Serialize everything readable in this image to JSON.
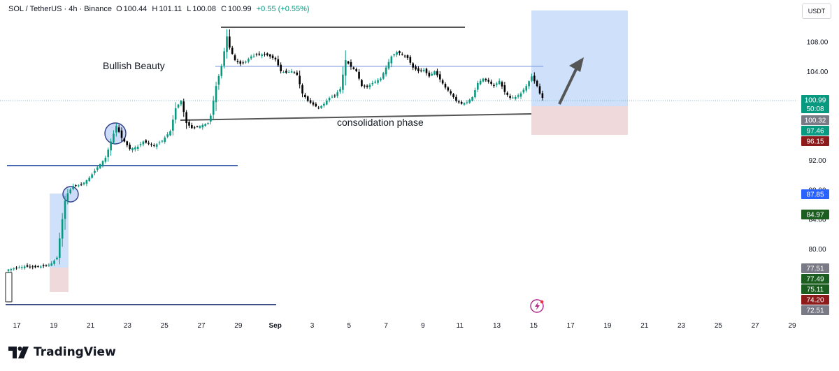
{
  "header": {
    "symbol": "SOL / TetherUS · 4h · Binance",
    "o_label": "O",
    "o_value": "100.44",
    "h_label": "H",
    "h_value": "101.11",
    "l_label": "L",
    "l_value": "100.08",
    "c_label": "C",
    "c_value": "100.99",
    "change": "+0.55 (+0.55%)"
  },
  "currency_button": "USDT",
  "brand": {
    "name": "TradingView",
    "logo_icon": "tradingview-logo-icon"
  },
  "colors": {
    "up": "#089981",
    "down": "#000000",
    "axis_text": "#131722",
    "line_blue": "#2962ff",
    "target_zone": "#cfe0fb",
    "stop_zone": "#f0d9db",
    "annotation_gray": "#555555"
  },
  "chart_data": {
    "type": "candlestick",
    "y_axis": {
      "ylim": [
        71.5,
        112.5
      ],
      "ticks": [
        80,
        84,
        88,
        92,
        104,
        108
      ]
    },
    "x_axis": {
      "ticks": [
        "17",
        "19",
        "21",
        "23",
        "25",
        "27",
        "29",
        "Sep",
        "3",
        "5",
        "7",
        "9",
        "11",
        "13",
        "15",
        "17",
        "19",
        "21",
        "23",
        "25",
        "27",
        "29"
      ]
    },
    "annotations": [
      {
        "text": "Bullish Beauty"
      },
      {
        "text": "consolidation phase"
      }
    ],
    "price_labels": [
      {
        "value": "100.99",
        "sub": "50:08",
        "color": "#089981"
      },
      {
        "value": "100.32",
        "color": "#787b86"
      },
      {
        "value": "97.46",
        "color": "#089981"
      },
      {
        "value": "96.15",
        "color": "#8e1b1b"
      },
      {
        "value": "87.85",
        "color": "#2962ff"
      },
      {
        "value": "84.97",
        "color": "#1b5e20"
      },
      {
        "value": "77.51",
        "color": "#787b86"
      },
      {
        "value": "77.49",
        "color": "#1b5e20"
      },
      {
        "value": "75.11",
        "color": "#1b5e20"
      },
      {
        "value": "74.20",
        "color": "#8e1b1b"
      },
      {
        "value": "72.51",
        "color": "#787b86"
      }
    ],
    "path": [
      [
        0,
        77.2
      ],
      [
        6,
        77.6
      ],
      [
        10,
        77.5
      ],
      [
        14,
        77.7
      ],
      [
        16,
        78.0
      ],
      [
        18,
        78.8
      ],
      [
        20,
        84.0
      ],
      [
        21,
        86.5
      ],
      [
        22,
        87.5
      ],
      [
        23,
        88.0
      ],
      [
        24,
        88.5
      ],
      [
        27,
        88.6
      ],
      [
        30,
        89.6
      ],
      [
        33,
        91.0
      ],
      [
        36,
        92.3
      ],
      [
        38,
        94.5
      ],
      [
        40,
        96.6
      ],
      [
        42,
        95.0
      ],
      [
        45,
        93.5
      ],
      [
        48,
        93.8
      ],
      [
        50,
        94.5
      ],
      [
        52,
        94.2
      ],
      [
        54,
        93.9
      ],
      [
        57,
        94.6
      ],
      [
        60,
        95.9
      ],
      [
        62,
        99.0
      ],
      [
        64,
        100.0
      ],
      [
        66,
        97.0
      ],
      [
        68,
        96.3
      ],
      [
        71,
        96.6
      ],
      [
        74,
        97.0
      ],
      [
        75,
        98.0
      ],
      [
        77,
        102.0
      ],
      [
        79,
        104.7
      ],
      [
        81,
        108.7
      ],
      [
        82,
        107.2
      ],
      [
        84,
        105.5
      ],
      [
        86,
        105.0
      ],
      [
        88,
        105.3
      ],
      [
        90,
        106.0
      ],
      [
        92,
        106.2
      ],
      [
        95,
        106.3
      ],
      [
        97,
        106.0
      ],
      [
        99,
        105.6
      ],
      [
        101,
        104.0
      ],
      [
        103,
        103.8
      ],
      [
        105,
        104.0
      ],
      [
        107,
        103.5
      ],
      [
        109,
        101.0
      ],
      [
        111,
        100.0
      ],
      [
        113,
        99.5
      ],
      [
        115,
        99.0
      ],
      [
        117,
        99.6
      ],
      [
        119,
        100.4
      ],
      [
        121,
        100.7
      ],
      [
        123,
        101.6
      ],
      [
        125,
        105.5
      ],
      [
        127,
        104.6
      ],
      [
        129,
        104.0
      ],
      [
        131,
        102.0
      ],
      [
        133,
        101.9
      ],
      [
        135,
        102.4
      ],
      [
        138,
        103.0
      ],
      [
        140,
        104.5
      ],
      [
        142,
        106.0
      ],
      [
        144,
        106.6
      ],
      [
        146,
        106.3
      ],
      [
        148,
        105.8
      ],
      [
        150,
        104.5
      ],
      [
        152,
        104.0
      ],
      [
        154,
        104.2
      ],
      [
        156,
        103.3
      ],
      [
        158,
        104.0
      ],
      [
        160,
        102.9
      ],
      [
        162,
        101.8
      ],
      [
        164,
        101.0
      ],
      [
        166,
        100.0
      ],
      [
        168,
        99.6
      ],
      [
        170,
        99.8
      ],
      [
        172,
        100.5
      ],
      [
        174,
        102.4
      ],
      [
        176,
        103.0
      ],
      [
        178,
        102.6
      ],
      [
        180,
        102.0
      ],
      [
        182,
        102.7
      ],
      [
        184,
        101.2
      ],
      [
        186,
        100.4
      ],
      [
        188,
        100.5
      ],
      [
        190,
        101.0
      ],
      [
        192,
        102.0
      ],
      [
        194,
        103.3
      ],
      [
        196,
        102.0
      ],
      [
        197,
        101.0
      ],
      [
        198,
        100.4
      ]
    ]
  }
}
